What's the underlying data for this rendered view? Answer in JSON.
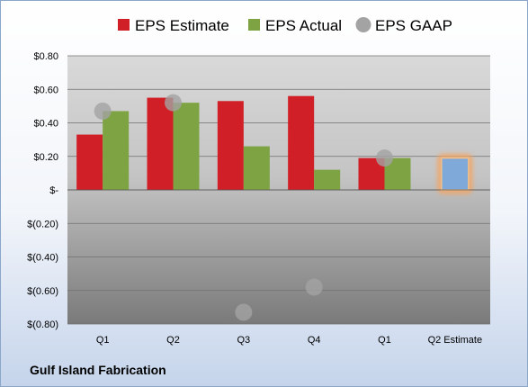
{
  "chart_data": {
    "type": "bar",
    "categories": [
      "Q1",
      "Q2",
      "Q3",
      "Q4",
      "Q1",
      "Q2 Estimate"
    ],
    "series": [
      {
        "name": "EPS Estimate",
        "values": [
          0.33,
          0.55,
          0.53,
          0.56,
          0.19,
          null
        ],
        "color": "#d01f26"
      },
      {
        "name": "EPS Actual",
        "values": [
          0.47,
          0.52,
          0.26,
          0.12,
          0.19,
          null
        ],
        "color": "#7da342"
      },
      {
        "name": "EPS GAAP",
        "type": "scatter",
        "values": [
          0.47,
          0.52,
          -0.73,
          -0.58,
          0.19,
          null
        ],
        "color": "#a3a3a3"
      }
    ],
    "estimate": {
      "category": "Q2 Estimate",
      "value": 0.19,
      "color": "#7fa9d9",
      "glow": "#f4a460"
    },
    "ylim": [
      -0.8,
      0.8
    ],
    "yticks": [
      "$(0.80)",
      "$(0.60)",
      "$(0.40)",
      "$(0.20)",
      "$-",
      "$0.20",
      "$0.40",
      "$0.60",
      "$0.80"
    ],
    "ytick_values": [
      -0.8,
      -0.6,
      -0.4,
      -0.2,
      0,
      0.2,
      0.4,
      0.6,
      0.8
    ],
    "grid": true,
    "legend_position": "top",
    "title": "",
    "xlabel": "",
    "ylabel": ""
  },
  "footer": {
    "company": "Gulf Island Fabrication"
  }
}
